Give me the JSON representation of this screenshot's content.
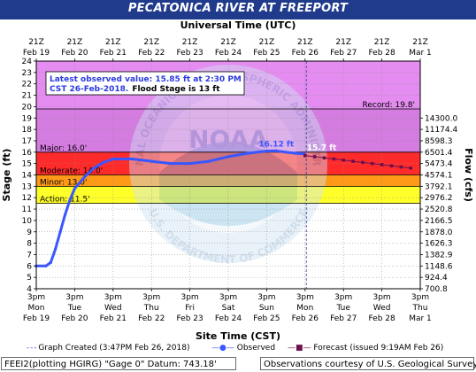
{
  "title": "PECATONICA RIVER AT FREEPORT",
  "top_axis_title": "Universal Time (UTC)",
  "bottom_axis_title": "Site Time (CST)",
  "left_axis_title": "Stage (ft)",
  "right_axis_title": "Flow (cfs)",
  "colors": {
    "title_bar": "#203a8c",
    "plot_bg": "#ffffff",
    "record_zone": "#e48cf0",
    "major_zone": "#d47ce0",
    "moderate_zone": "#ff2b2b",
    "minor_zone": "#ff9a18",
    "action_zone": "#ffff2a",
    "observed": "#3a56ff",
    "forecast": "#6e0f4e",
    "info_box_text": "#2a3ae0"
  },
  "info_box": {
    "line1": "Latest observed value: 15.85 ft at 2:30 PM",
    "line2_prefix": "CST 26-Feb-2018.",
    "line2_suffix": "Flood Stage is 13 ft"
  },
  "thresholds": [
    {
      "label": "Record: 19.8'",
      "value": 19.8
    },
    {
      "label": "Major: 16.0'",
      "value": 16.0
    },
    {
      "label": "Moderate: 14.0'",
      "value": 14.0
    },
    {
      "label": "Minor: 13.0'",
      "value": 13.0
    },
    {
      "label": "Action: 11.5'",
      "value": 11.5
    }
  ],
  "peak_label": "16.12 ft",
  "latest_label": "15.7 ft",
  "top_ticks": [
    {
      "time": "21Z",
      "date": "Feb 19"
    },
    {
      "time": "21Z",
      "date": "Feb 20"
    },
    {
      "time": "21Z",
      "date": "Feb 21"
    },
    {
      "time": "21Z",
      "date": "Feb 22"
    },
    {
      "time": "21Z",
      "date": "Feb 23"
    },
    {
      "time": "21Z",
      "date": "Feb 24"
    },
    {
      "time": "21Z",
      "date": "Feb 25"
    },
    {
      "time": "21Z",
      "date": "Feb 26"
    },
    {
      "time": "21Z",
      "date": "Feb 27"
    },
    {
      "time": "21Z",
      "date": "Feb 28"
    },
    {
      "time": "21Z",
      "date": "Mar 1"
    }
  ],
  "bottom_ticks": [
    {
      "time": "3pm",
      "day": "Mon",
      "date": "Feb 19"
    },
    {
      "time": "3pm",
      "day": "Tue",
      "date": "Feb 20"
    },
    {
      "time": "3pm",
      "day": "Wed",
      "date": "Feb 21"
    },
    {
      "time": "3pm",
      "day": "Thu",
      "date": "Feb 22"
    },
    {
      "time": "3pm",
      "day": "Fri",
      "date": "Feb 23"
    },
    {
      "time": "3pm",
      "day": "Sat",
      "date": "Feb 24"
    },
    {
      "time": "3pm",
      "day": "Sun",
      "date": "Feb 25"
    },
    {
      "time": "3pm",
      "day": "Mon",
      "date": "Feb 26"
    },
    {
      "time": "3pm",
      "day": "Tue",
      "date": "Feb 27"
    },
    {
      "time": "3pm",
      "day": "Wed",
      "date": "Feb 28"
    },
    {
      "time": "3pm",
      "day": "Thu",
      "date": "Mar 1"
    }
  ],
  "stage_ticks": [
    "4",
    "5",
    "6",
    "7",
    "8",
    "9",
    "10",
    "11",
    "12",
    "13",
    "14",
    "15",
    "16",
    "17",
    "18",
    "19",
    "20",
    "21",
    "22",
    "23",
    "24"
  ],
  "flow_ticks": [
    {
      "stage": 4,
      "label": "700.8"
    },
    {
      "stage": 5,
      "label": "924.4"
    },
    {
      "stage": 6,
      "label": "1148.6"
    },
    {
      "stage": 7,
      "label": "1382.9"
    },
    {
      "stage": 8,
      "label": "1626.3"
    },
    {
      "stage": 9,
      "label": "1878.0"
    },
    {
      "stage": 10,
      "label": "2166.5"
    },
    {
      "stage": 11,
      "label": "2520.8"
    },
    {
      "stage": 12,
      "label": "2976.2"
    },
    {
      "stage": 13,
      "label": "3792.1"
    },
    {
      "stage": 14,
      "label": "4574.1"
    },
    {
      "stage": 15,
      "label": "5473.4"
    },
    {
      "stage": 16,
      "label": "6501.4"
    },
    {
      "stage": 17,
      "label": "8598.3"
    },
    {
      "stage": 18,
      "label": "11174.4"
    },
    {
      "stage": 19,
      "label": "14300.0"
    }
  ],
  "chart_data": {
    "type": "line",
    "title": "PECATONICA RIVER AT FREEPORT",
    "xlabel": "Site Time (CST)",
    "ylabel": "Stage (ft)",
    "y2label": "Flow (cfs)",
    "x_range": [
      "2018-02-19 15:00",
      "2018-03-01 15:00"
    ],
    "ylim": [
      4,
      24
    ],
    "grid": true,
    "graph_created": "2018-02-26 15:47",
    "series": [
      {
        "name": "Observed",
        "points": [
          [
            "2018-02-19 15:00",
            6.0
          ],
          [
            "2018-02-19 21:00",
            6.0
          ],
          [
            "2018-02-20 00:00",
            6.3
          ],
          [
            "2018-02-20 03:00",
            7.5
          ],
          [
            "2018-02-20 06:00",
            9.0
          ],
          [
            "2018-02-20 09:00",
            10.5
          ],
          [
            "2018-02-20 12:00",
            11.8
          ],
          [
            "2018-02-20 15:00",
            12.8
          ],
          [
            "2018-02-20 21:00",
            13.8
          ],
          [
            "2018-02-21 03:00",
            14.6
          ],
          [
            "2018-02-21 09:00",
            15.1
          ],
          [
            "2018-02-21 15:00",
            15.4
          ],
          [
            "2018-02-22 03:00",
            15.4
          ],
          [
            "2018-02-22 15:00",
            15.2
          ],
          [
            "2018-02-23 03:00",
            15.0
          ],
          [
            "2018-02-23 15:00",
            15.0
          ],
          [
            "2018-02-24 03:00",
            15.2
          ],
          [
            "2018-02-24 15:00",
            15.6
          ],
          [
            "2018-02-25 03:00",
            15.9
          ],
          [
            "2018-02-25 15:00",
            16.1
          ],
          [
            "2018-02-25 21:00",
            16.12
          ],
          [
            "2018-02-26 03:00",
            16.0
          ],
          [
            "2018-02-26 09:00",
            15.9
          ],
          [
            "2018-02-26 14:30",
            15.85
          ]
        ]
      },
      {
        "name": "Forecast (issued 9:19AM Feb 26)",
        "points": [
          [
            "2018-02-26 15:00",
            15.7
          ],
          [
            "2018-02-26 21:00",
            15.6
          ],
          [
            "2018-02-27 03:00",
            15.5
          ],
          [
            "2018-02-27 09:00",
            15.4
          ],
          [
            "2018-02-27 15:00",
            15.3
          ],
          [
            "2018-02-27 21:00",
            15.2
          ],
          [
            "2018-02-28 03:00",
            15.1
          ],
          [
            "2018-02-28 09:00",
            15.0
          ],
          [
            "2018-02-28 15:00",
            14.9
          ],
          [
            "2018-02-28 21:00",
            14.8
          ],
          [
            "2018-03-01 03:00",
            14.7
          ],
          [
            "2018-03-01 09:00",
            14.6
          ]
        ]
      }
    ],
    "annotations": [
      "16.12 ft",
      "15.7 ft"
    ]
  },
  "legend": {
    "graph_created": "Graph Created (3:47PM Feb 26, 2018)",
    "observed": "Observed",
    "forecast": "Forecast (issued 9:19AM Feb 26)"
  },
  "footer": {
    "left": "FEEI2(plotting HGIRG) \"Gage 0\" Datum: 743.18'",
    "right": "Observations courtesy of U.S. Geological Survey"
  },
  "watermark": {
    "emblem": "noaa-emblem",
    "text_top": "NATIONAL OCEANIC AND ATMOSPHERIC ADMINISTRATION",
    "text_bottom": "U.S. DEPARTMENT OF COMMERCE",
    "center": "NOAA"
  }
}
